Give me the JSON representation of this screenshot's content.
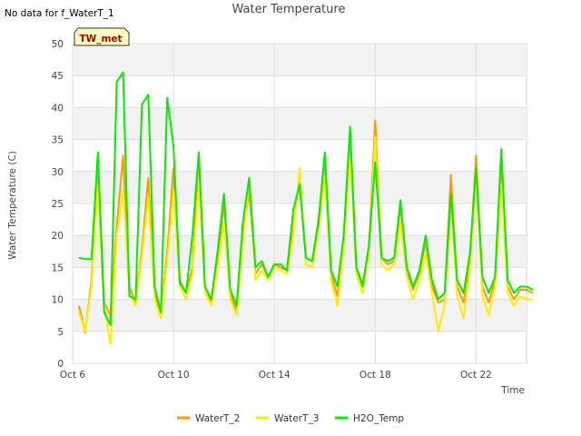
{
  "chart_data": {
    "type": "line",
    "title": "Water Temperature",
    "note": "No data for f_WaterT_1",
    "station_label": "TW_met",
    "xlabel": "Time",
    "ylabel": "Water Temperature (C)",
    "xlim": [
      "2023-10-06",
      "2023-10-24"
    ],
    "ylim": [
      0,
      50
    ],
    "xticks": [
      {
        "label": "Oct 6",
        "date": "2023-10-06"
      },
      {
        "label": "Oct 10",
        "date": "2023-10-10"
      },
      {
        "label": "Oct 14",
        "date": "2023-10-14"
      },
      {
        "label": "Oct 18",
        "date": "2023-10-18"
      },
      {
        "label": "Oct 22",
        "date": "2023-10-22"
      }
    ],
    "yticks": [
      0,
      5,
      10,
      15,
      20,
      25,
      30,
      35,
      40,
      45,
      50
    ],
    "grid": true,
    "legend_position": "bottom",
    "x": [
      "2023-10-06 06:00",
      "2023-10-06 12:00",
      "2023-10-06 18:00",
      "2023-10-07 00:00",
      "2023-10-07 06:00",
      "2023-10-07 12:00",
      "2023-10-07 18:00",
      "2023-10-08 00:00",
      "2023-10-08 06:00",
      "2023-10-08 12:00",
      "2023-10-08 18:00",
      "2023-10-09 00:00",
      "2023-10-09 06:00",
      "2023-10-09 12:00",
      "2023-10-09 18:00",
      "2023-10-10 00:00",
      "2023-10-10 06:00",
      "2023-10-10 12:00",
      "2023-10-10 18:00",
      "2023-10-11 00:00",
      "2023-10-11 06:00",
      "2023-10-11 12:00",
      "2023-10-11 18:00",
      "2023-10-12 00:00",
      "2023-10-12 06:00",
      "2023-10-12 12:00",
      "2023-10-12 18:00",
      "2023-10-13 00:00",
      "2023-10-13 06:00",
      "2023-10-13 12:00",
      "2023-10-13 18:00",
      "2023-10-14 00:00",
      "2023-10-14 06:00",
      "2023-10-14 12:00",
      "2023-10-14 18:00",
      "2023-10-15 00:00",
      "2023-10-15 06:00",
      "2023-10-15 12:00",
      "2023-10-15 18:00",
      "2023-10-16 00:00",
      "2023-10-16 06:00",
      "2023-10-16 12:00",
      "2023-10-16 18:00",
      "2023-10-17 00:00",
      "2023-10-17 06:00",
      "2023-10-17 12:00",
      "2023-10-17 18:00",
      "2023-10-18 00:00",
      "2023-10-18 06:00",
      "2023-10-18 12:00",
      "2023-10-18 18:00",
      "2023-10-19 00:00",
      "2023-10-19 06:00",
      "2023-10-19 12:00",
      "2023-10-19 18:00",
      "2023-10-20 00:00",
      "2023-10-20 06:00",
      "2023-10-20 12:00",
      "2023-10-20 18:00",
      "2023-10-21 00:00",
      "2023-10-21 06:00",
      "2023-10-21 12:00",
      "2023-10-21 18:00",
      "2023-10-22 00:00",
      "2023-10-22 06:00",
      "2023-10-22 12:00",
      "2023-10-22 18:00",
      "2023-10-23 00:00",
      "2023-10-23 06:00",
      "2023-10-23 12:00",
      "2023-10-23 18:00",
      "2023-10-24 00:00",
      "2023-10-24 06:00"
    ],
    "series": [
      {
        "name": "WaterT_2",
        "color": "#ff9900",
        "values": [
          9.0,
          4.8,
          13.0,
          32.0,
          9.5,
          7.5,
          21.5,
          32.5,
          12.0,
          9.5,
          18.0,
          29.0,
          11.0,
          7.5,
          17.5,
          30.5,
          13.0,
          11.0,
          15.0,
          32.5,
          12.0,
          9.5,
          16.0,
          25.0,
          11.0,
          8.0,
          20.0,
          27.0,
          14.0,
          15.5,
          13.5,
          15.5,
          15.0,
          14.5,
          21.0,
          29.5,
          16.5,
          16.0,
          22.5,
          32.0,
          14.0,
          10.5,
          20.0,
          36.5,
          15.0,
          12.5,
          18.0,
          38.0,
          16.5,
          15.5,
          16.0,
          24.5,
          14.5,
          11.5,
          14.0,
          19.0,
          12.0,
          9.5,
          10.0,
          29.5,
          12.0,
          9.5,
          16.0,
          32.5,
          12.0,
          9.5,
          13.0,
          31.5,
          12.0,
          10.0,
          11.5,
          11.5,
          11.0
        ]
      },
      {
        "name": "WaterT_3",
        "color": "#ffee00",
        "values": [
          8.0,
          5.0,
          12.0,
          28.0,
          9.0,
          3.0,
          20.0,
          27.0,
          11.0,
          9.0,
          17.0,
          26.0,
          10.0,
          7.0,
          16.0,
          27.0,
          12.0,
          10.0,
          14.0,
          28.0,
          11.0,
          9.0,
          15.0,
          22.0,
          10.0,
          7.5,
          18.5,
          29.0,
          13.0,
          14.5,
          13.0,
          15.0,
          14.5,
          14.0,
          20.0,
          30.5,
          15.5,
          15.0,
          21.0,
          29.0,
          13.0,
          9.0,
          18.0,
          33.0,
          14.0,
          11.0,
          17.0,
          35.5,
          15.5,
          14.5,
          15.5,
          22.0,
          13.5,
          10.0,
          13.0,
          17.0,
          11.0,
          5.0,
          9.0,
          25.0,
          10.5,
          7.0,
          14.5,
          29.0,
          10.5,
          7.5,
          12.0,
          28.0,
          11.0,
          9.0,
          10.5,
          10.0,
          10.0
        ]
      },
      {
        "name": "H2O_Temp",
        "color": "#00ee00",
        "values": [
          16.5,
          16.3,
          16.3,
          33.0,
          8.0,
          6.0,
          44.0,
          45.5,
          10.5,
          10.0,
          40.5,
          42.0,
          12.0,
          8.0,
          41.5,
          34.0,
          12.5,
          11.0,
          20.0,
          33.0,
          12.0,
          10.0,
          17.5,
          26.5,
          11.5,
          9.0,
          22.0,
          29.0,
          15.0,
          16.0,
          13.5,
          15.5,
          15.5,
          14.5,
          24.0,
          28.0,
          16.5,
          16.0,
          22.0,
          33.0,
          14.5,
          12.0,
          20.0,
          37.0,
          15.0,
          12.0,
          18.5,
          31.5,
          16.5,
          16.0,
          16.5,
          25.5,
          15.0,
          12.0,
          14.5,
          20.0,
          13.0,
          10.0,
          11.0,
          26.5,
          13.0,
          11.0,
          17.0,
          30.5,
          13.5,
          11.0,
          13.5,
          33.5,
          13.0,
          11.0,
          12.0,
          12.0,
          11.5
        ]
      }
    ]
  }
}
